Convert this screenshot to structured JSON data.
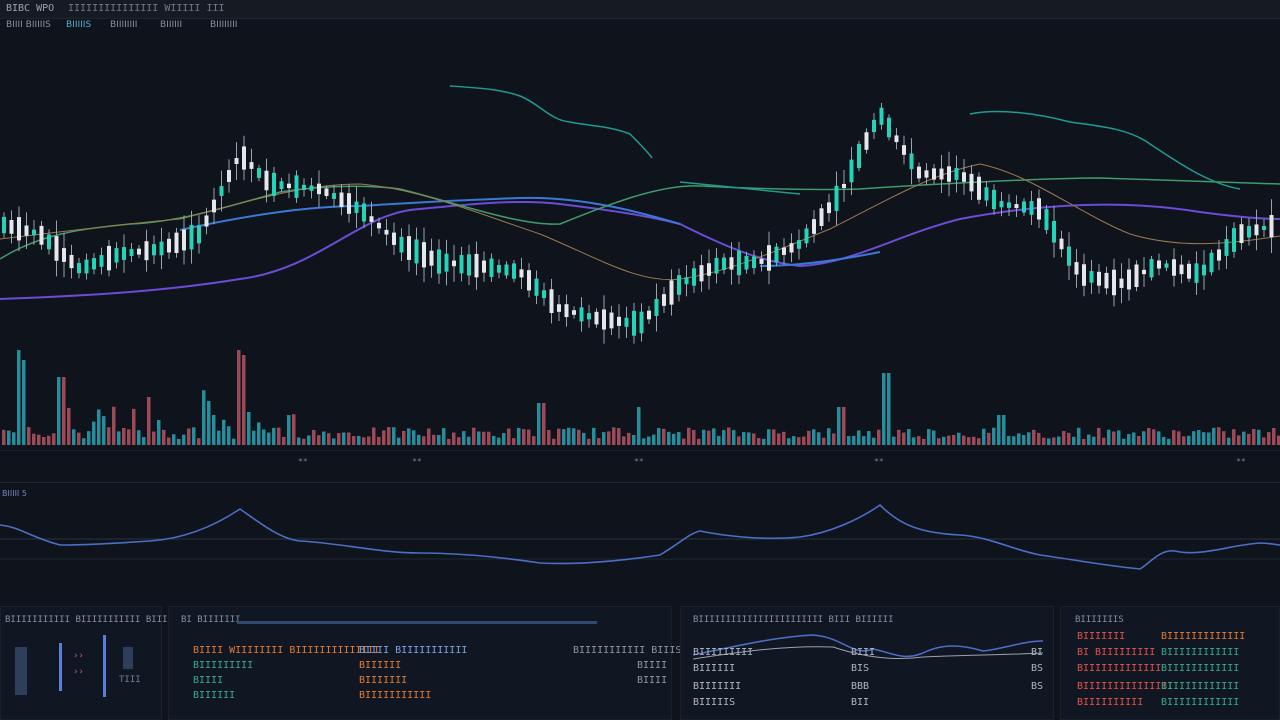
{
  "topbar": {
    "symbol": "BIBC WPO",
    "subtitle": "IIIIIIIIIIIIIII WIIIII III"
  },
  "tabs": [
    {
      "label": "BIIII BIIIIIS"
    },
    {
      "label": "BIIIIIS"
    },
    {
      "label": "BIIIIIIII"
    },
    {
      "label": "BIIIIII"
    },
    {
      "label": "BIIIIIIII"
    }
  ],
  "time_axis": {
    "ticks": [
      "**",
      "**",
      "**",
      "**",
      "**"
    ]
  },
  "oscillator": {
    "label": "BIIIII 5"
  },
  "colors": {
    "background": "#0f131b",
    "up_candle": "#24d3b8",
    "down_candle": "#e4e7ec",
    "volume_up": "#2aa3b3",
    "volume_down": "#b55563",
    "ma_slow": "#6a4cd6",
    "ma_mid": "#3a79d6",
    "ma_green": "#3f9b69",
    "ma_teal": "#1f9a94",
    "ma_brown": "#9a7a4e",
    "oscillator_line": "#4b6fc6",
    "text_orange": "#e07a32",
    "text_red": "#e0524a",
    "text_green": "#3aa88a"
  },
  "panels": {
    "left": {
      "title": "BIIIIIIIIIII BIIIIIIIIIII BIIIII",
      "label": "TIII"
    },
    "orders": {
      "title": "BI BIIIIIII",
      "headers": [
        "BIIII WIIIIIIII BIIIIIIIIIIIIII",
        "BIIII BIIIIIIIIIII",
        "BIIIIIIIIIII BIIIS"
      ],
      "rows": [
        {
          "a": "BIIIIIIIII",
          "b": "BIIIIII",
          "c": "BIIII"
        },
        {
          "a": "BIIII",
          "b": "BIIIIIII",
          "c": "BIIII"
        },
        {
          "a": "BIIIIII",
          "b": "BIIIIIIIIIII",
          "c": ""
        }
      ]
    },
    "market": {
      "title": "BIIIIIIIIIIIIIIIIIIIIIII BIII BIIIIII",
      "rows": [
        {
          "a": "BIIIIIIIII",
          "b": "BIII",
          "c": "BI"
        },
        {
          "a": "BIIIIII",
          "b": "BIS",
          "c": "BS"
        },
        {
          "a": "BIIIIIII",
          "b": "BBB",
          "c": "BS"
        },
        {
          "a": "BIIIIIS",
          "b": "BII",
          "c": ""
        }
      ]
    },
    "right": {
      "title": "BIIIIIIIS",
      "rows": [
        {
          "a": "BIIIIIII",
          "b": "BIIIIIIIIIIIII"
        },
        {
          "a": "BI BIIIIIIIII",
          "b": "BIIIIIIIIIIII"
        },
        {
          "a": "BIIIIIIIIIIIII",
          "b": "BIIIIIIIIIIII"
        },
        {
          "a": "BIIIIIIIIIIIIIII",
          "b": "BIIIIIIIIIIII"
        },
        {
          "a": "BIIIIIIIIII",
          "b": "BIIIIIIIIIIII"
        }
      ]
    }
  }
}
